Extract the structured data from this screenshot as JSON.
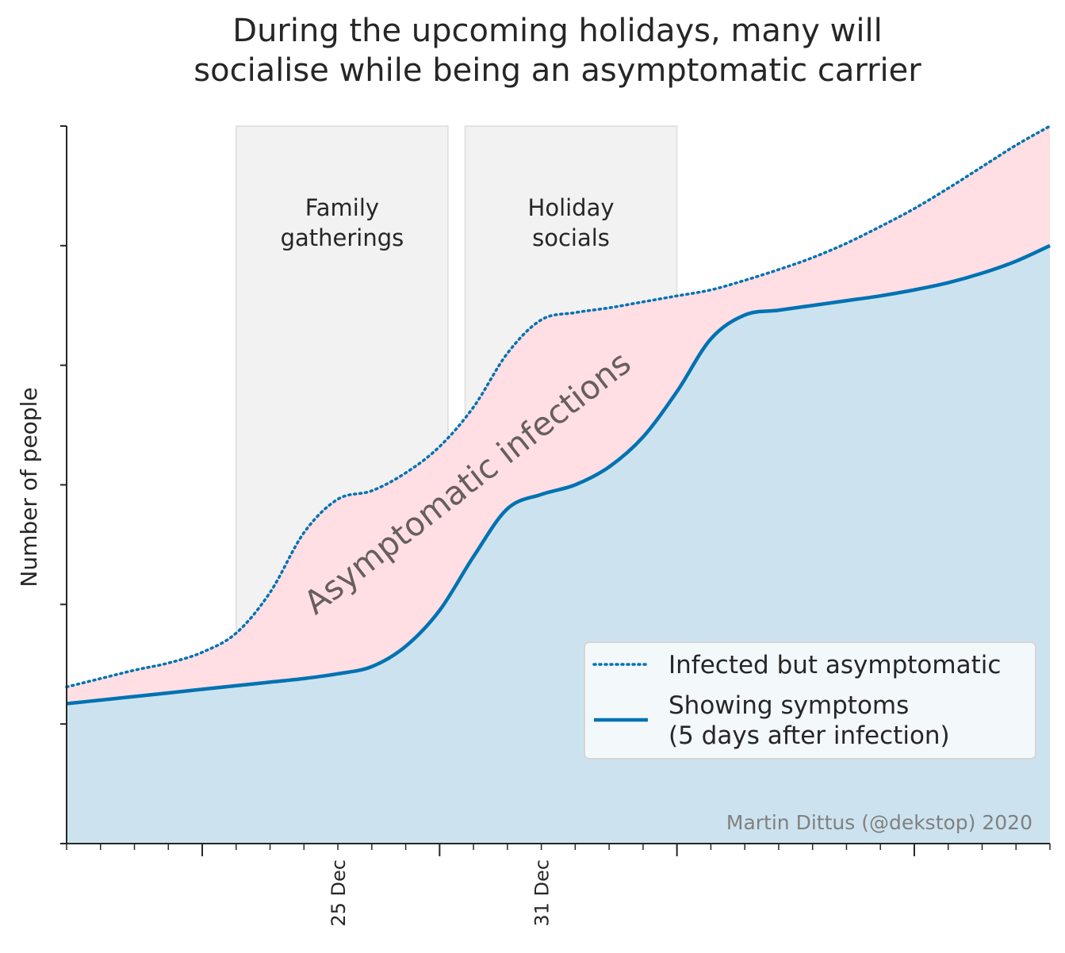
{
  "chart_data": {
    "type": "area",
    "title": [
      "During the upcoming holidays, many will",
      "socialise while being an asymptomatic carrier"
    ],
    "ylabel": "Number of people",
    "x_tick_labels": [
      {
        "x": "2020-12-25",
        "label": "25 Dec"
      },
      {
        "x": "2020-12-31",
        "label": "31 Dec"
      }
    ],
    "xlim": [
      "2020-12-17",
      "2021-01-15"
    ],
    "ylim": [
      0,
      6
    ],
    "y_ticks": [
      0,
      1,
      2,
      3,
      4,
      5,
      6
    ],
    "y_tick_labels_shown": false,
    "grid": false,
    "shaded_periods": [
      {
        "label": [
          "Family",
          "gatherings"
        ],
        "start": "2020-12-22",
        "end": "2020-12-28.25"
      },
      {
        "label": [
          "Holiday",
          "socials"
        ],
        "start": "2020-12-28.75",
        "end": "2021-01-04"
      }
    ],
    "area_annotation": "Asymptomatic infections",
    "series": [
      {
        "name": "Infected but asymptomatic",
        "style": "dotted",
        "color": "#0072b2",
        "x": [
          "2020-12-17",
          "2020-12-18",
          "2020-12-19",
          "2020-12-20",
          "2020-12-21",
          "2020-12-22",
          "2020-12-23",
          "2020-12-24",
          "2020-12-25",
          "2020-12-26",
          "2020-12-27",
          "2020-12-28",
          "2020-12-29",
          "2020-12-30",
          "2020-12-31",
          "2021-01-01",
          "2021-01-02",
          "2021-01-03",
          "2021-01-04",
          "2021-01-05",
          "2021-01-06",
          "2021-01-07",
          "2021-01-08",
          "2021-01-09",
          "2021-01-10",
          "2021-01-11",
          "2021-01-12",
          "2021-01-13",
          "2021-01-14",
          "2021-01-15"
        ],
        "values": [
          1.31,
          1.38,
          1.45,
          1.51,
          1.6,
          1.76,
          2.1,
          2.6,
          2.88,
          2.95,
          3.1,
          3.32,
          3.65,
          4.1,
          4.38,
          4.44,
          4.48,
          4.53,
          4.58,
          4.63,
          4.71,
          4.8,
          4.9,
          5.02,
          5.16,
          5.31,
          5.48,
          5.66,
          5.84,
          6.0
        ]
      },
      {
        "name": "Showing symptoms\n(5 days after infection)",
        "style": "solid",
        "color": "#0072b2",
        "x": [
          "2020-12-17",
          "2020-12-18",
          "2020-12-19",
          "2020-12-20",
          "2020-12-21",
          "2020-12-22",
          "2020-12-23",
          "2020-12-24",
          "2020-12-25",
          "2020-12-26",
          "2020-12-27",
          "2020-12-28",
          "2020-12-29",
          "2020-12-30",
          "2020-12-31",
          "2021-01-01",
          "2021-01-02",
          "2021-01-03",
          "2021-01-04",
          "2021-01-05",
          "2021-01-06",
          "2021-01-07",
          "2021-01-08",
          "2021-01-09",
          "2021-01-10",
          "2021-01-11",
          "2021-01-12",
          "2021-01-13",
          "2021-01-14",
          "2021-01-15"
        ],
        "values": [
          1.17,
          1.2,
          1.23,
          1.26,
          1.29,
          1.32,
          1.35,
          1.38,
          1.42,
          1.48,
          1.65,
          1.95,
          2.4,
          2.8,
          2.92,
          3.0,
          3.15,
          3.4,
          3.78,
          4.22,
          4.42,
          4.46,
          4.5,
          4.54,
          4.58,
          4.63,
          4.69,
          4.77,
          4.87,
          5.0
        ]
      }
    ],
    "fills": {
      "between_series": "#ffdfe3",
      "under_symptoms": "#cce3ef"
    },
    "legend": {
      "position": "lower-right"
    },
    "credit": "Martin Dittus (@dekstop) 2020"
  }
}
